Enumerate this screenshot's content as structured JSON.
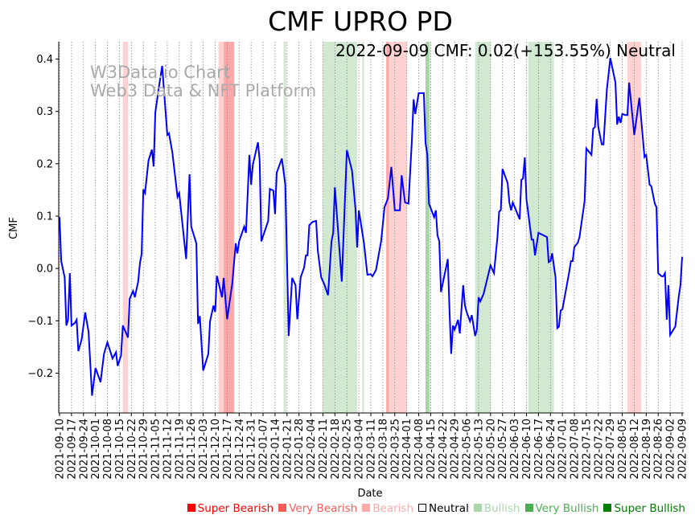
{
  "chart_data": {
    "type": "line",
    "title": "CMF UPRO PD",
    "annotation": "2022-09-09 CMF: 0.02(+153.55%) Neutral",
    "watermark": [
      "W3Data.io Chart",
      "Web3 Data & NFT Platform"
    ],
    "xlabel": "Date",
    "ylabel": "CMF",
    "start_date": "2021-09-10",
    "x_unit": "days since start_date",
    "xlim": [
      0,
      364
    ],
    "ylim": [
      -0.276,
      0.433
    ],
    "y_ticks": [
      -0.2,
      -0.1,
      0.0,
      0.1,
      0.2,
      0.3,
      0.4
    ],
    "y_tick_labels": [
      "−0.2",
      "−0.1",
      "0.0",
      "0.1",
      "0.2",
      "0.3",
      "0.4"
    ],
    "x_ticks": [
      "2021-09-10",
      "2021-09-17",
      "2021-09-24",
      "2021-10-01",
      "2021-10-08",
      "2021-10-15",
      "2021-10-22",
      "2021-10-29",
      "2021-11-05",
      "2021-11-12",
      "2021-11-19",
      "2021-11-26",
      "2021-12-03",
      "2021-12-10",
      "2021-12-17",
      "2021-12-24",
      "2021-12-31",
      "2022-01-07",
      "2022-01-14",
      "2022-01-21",
      "2022-01-28",
      "2022-02-04",
      "2022-02-11",
      "2022-02-18",
      "2022-02-25",
      "2022-03-04",
      "2022-03-11",
      "2022-03-18",
      "2022-03-25",
      "2022-04-01",
      "2022-04-08",
      "2022-04-15",
      "2022-04-22",
      "2022-04-29",
      "2022-05-06",
      "2022-05-13",
      "2022-05-20",
      "2022-05-27",
      "2022-06-03",
      "2022-06-10",
      "2022-06-17",
      "2022-06-24",
      "2022-07-01",
      "2022-07-08",
      "2022-07-15",
      "2022-07-22",
      "2022-07-29",
      "2022-08-05",
      "2022-08-12",
      "2022-08-19",
      "2022-08-26",
      "2022-09-02",
      "2022-09-09"
    ],
    "grid": "vertical dotted at weekly ticks",
    "line_color": "#0000ff",
    "series": [
      {
        "name": "CMF",
        "points": [
          [
            0,
            0.098
          ],
          [
            1,
            0.014
          ],
          [
            3,
            -0.017
          ],
          [
            4,
            -0.109
          ],
          [
            5,
            -0.098
          ],
          [
            6,
            -0.009
          ],
          [
            7,
            -0.109
          ],
          [
            9,
            -0.104
          ],
          [
            10,
            -0.098
          ],
          [
            11,
            -0.158
          ],
          [
            13,
            -0.135
          ],
          [
            15,
            -0.084
          ],
          [
            17,
            -0.121
          ],
          [
            19,
            -0.243
          ],
          [
            21,
            -0.19
          ],
          [
            24,
            -0.217
          ],
          [
            26,
            -0.163
          ],
          [
            28,
            -0.141
          ],
          [
            31,
            -0.172
          ],
          [
            33,
            -0.16
          ],
          [
            34,
            -0.186
          ],
          [
            36,
            -0.166
          ],
          [
            37,
            -0.109
          ],
          [
            40,
            -0.132
          ],
          [
            41,
            -0.058
          ],
          [
            43,
            -0.043
          ],
          [
            44,
            -0.055
          ],
          [
            46,
            -0.025
          ],
          [
            47,
            0.009
          ],
          [
            48,
            0.028
          ],
          [
            49,
            0.151
          ],
          [
            50,
            0.144
          ],
          [
            52,
            0.206
          ],
          [
            54,
            0.227
          ],
          [
            55,
            0.195
          ],
          [
            56,
            0.298
          ],
          [
            58,
            0.344
          ],
          [
            60,
            0.387
          ],
          [
            63,
            0.255
          ],
          [
            64,
            0.258
          ],
          [
            66,
            0.221
          ],
          [
            69,
            0.137
          ],
          [
            70,
            0.144
          ],
          [
            71,
            0.111
          ],
          [
            74,
            0.018
          ],
          [
            76,
            0.18
          ],
          [
            77,
            0.08
          ],
          [
            80,
            0.048
          ],
          [
            81,
            -0.106
          ],
          [
            82,
            -0.091
          ],
          [
            84,
            -0.195
          ],
          [
            87,
            -0.163
          ],
          [
            88,
            -0.101
          ],
          [
            90,
            -0.071
          ],
          [
            91,
            -0.083
          ],
          [
            92,
            -0.014
          ],
          [
            95,
            -0.055
          ],
          [
            96,
            -0.018
          ],
          [
            98,
            -0.097
          ],
          [
            101,
            -0.028
          ],
          [
            103,
            0.048
          ],
          [
            104,
            0.029
          ],
          [
            105,
            0.052
          ],
          [
            108,
            0.08
          ],
          [
            109,
            0.068
          ],
          [
            111,
            0.217
          ],
          [
            112,
            0.16
          ],
          [
            113,
            0.198
          ],
          [
            116,
            0.241
          ],
          [
            117,
            0.206
          ],
          [
            118,
            0.052
          ],
          [
            122,
            0.091
          ],
          [
            123,
            0.152
          ],
          [
            125,
            0.149
          ],
          [
            126,
            0.104
          ],
          [
            127,
            0.183
          ],
          [
            130,
            0.21
          ],
          [
            132,
            0.16
          ],
          [
            134,
            -0.129
          ],
          [
            136,
            -0.018
          ],
          [
            138,
            -0.032
          ],
          [
            139,
            -0.097
          ],
          [
            141,
            -0.017
          ],
          [
            143,
            0.002
          ],
          [
            144,
            0.025
          ],
          [
            145,
            0.025
          ],
          [
            146,
            0.083
          ],
          [
            148,
            0.089
          ],
          [
            150,
            0.091
          ],
          [
            151,
            0.034
          ],
          [
            153,
            -0.017
          ],
          [
            155,
            -0.032
          ],
          [
            157,
            -0.051
          ],
          [
            159,
            0.052
          ],
          [
            160,
            0.068
          ],
          [
            161,
            0.155
          ],
          [
            165,
            -0.025
          ],
          [
            168,
            0.226
          ],
          [
            171,
            0.187
          ],
          [
            173,
            0.114
          ],
          [
            174,
            0.04
          ],
          [
            175,
            0.111
          ],
          [
            178,
            0.048
          ],
          [
            180,
            -0.012
          ],
          [
            182,
            -0.011
          ],
          [
            183,
            -0.015
          ],
          [
            185,
            -0.003
          ],
          [
            188,
            0.052
          ],
          [
            190,
            0.117
          ],
          [
            192,
            0.134
          ],
          [
            194,
            0.194
          ],
          [
            196,
            0.111
          ],
          [
            199,
            0.111
          ],
          [
            200,
            0.178
          ],
          [
            202,
            0.126
          ],
          [
            204,
            0.124
          ],
          [
            206,
            0.244
          ],
          [
            207,
            0.323
          ],
          [
            208,
            0.295
          ],
          [
            210,
            0.335
          ],
          [
            213,
            0.335
          ],
          [
            214,
            0.24
          ],
          [
            215,
            0.218
          ],
          [
            216,
            0.124
          ],
          [
            219,
            0.098
          ],
          [
            220,
            0.111
          ],
          [
            221,
            0.063
          ],
          [
            222,
            0.052
          ],
          [
            223,
            -0.045
          ],
          [
            227,
            0.018
          ],
          [
            228,
            -0.08
          ],
          [
            229,
            -0.163
          ],
          [
            230,
            -0.109
          ],
          [
            231,
            -0.117
          ],
          [
            233,
            -0.098
          ],
          [
            234,
            -0.124
          ],
          [
            236,
            -0.032
          ],
          [
            237,
            -0.071
          ],
          [
            238,
            -0.083
          ],
          [
            240,
            -0.101
          ],
          [
            241,
            -0.089
          ],
          [
            243,
            -0.129
          ],
          [
            244,
            -0.117
          ],
          [
            245,
            -0.055
          ],
          [
            246,
            -0.063
          ],
          [
            248,
            -0.048
          ],
          [
            252,
            0.006
          ],
          [
            254,
            -0.009
          ],
          [
            256,
            0.06
          ],
          [
            257,
            0.108
          ],
          [
            258,
            0.112
          ],
          [
            259,
            0.19
          ],
          [
            262,
            0.163
          ],
          [
            263,
            0.126
          ],
          [
            264,
            0.111
          ],
          [
            265,
            0.126
          ],
          [
            269,
            0.094
          ],
          [
            270,
            0.169
          ],
          [
            271,
            0.172
          ],
          [
            272,
            0.212
          ],
          [
            273,
            0.132
          ],
          [
            276,
            0.055
          ],
          [
            277,
            0.055
          ],
          [
            278,
            0.025
          ],
          [
            280,
            0.068
          ],
          [
            285,
            0.06
          ],
          [
            286,
            0.012
          ],
          [
            287,
            0.014
          ],
          [
            288,
            0.029
          ],
          [
            290,
            -0.017
          ],
          [
            291,
            -0.114
          ],
          [
            292,
            -0.111
          ],
          [
            293,
            -0.08
          ],
          [
            294,
            -0.078
          ],
          [
            298,
            -0.006
          ],
          [
            299,
            0.014
          ],
          [
            300,
            0.014
          ],
          [
            301,
            0.041
          ],
          [
            303,
            0.049
          ],
          [
            304,
            0.06
          ],
          [
            307,
            0.129
          ],
          [
            308,
            0.229
          ],
          [
            311,
            0.217
          ],
          [
            312,
            0.267
          ],
          [
            313,
            0.27
          ],
          [
            314,
            0.324
          ],
          [
            315,
            0.27
          ],
          [
            317,
            0.237
          ],
          [
            318,
            0.237
          ],
          [
            320,
            0.341
          ],
          [
            322,
            0.402
          ],
          [
            325,
            0.355
          ],
          [
            326,
            0.275
          ],
          [
            327,
            0.29
          ],
          [
            328,
            0.278
          ],
          [
            329,
            0.295
          ],
          [
            331,
            0.293
          ],
          [
            332,
            0.293
          ],
          [
            333,
            0.355
          ],
          [
            336,
            0.255
          ],
          [
            339,
            0.326
          ],
          [
            342,
            0.213
          ],
          [
            343,
            0.217
          ],
          [
            345,
            0.16
          ],
          [
            346,
            0.157
          ],
          [
            348,
            0.124
          ],
          [
            349,
            0.117
          ],
          [
            350,
            -0.009
          ],
          [
            352,
            -0.015
          ],
          [
            353,
            -0.015
          ],
          [
            354,
            -0.009
          ],
          [
            355,
            -0.098
          ],
          [
            356,
            -0.032
          ],
          [
            357,
            -0.127
          ],
          [
            360,
            -0.111
          ],
          [
            362,
            -0.055
          ],
          [
            363,
            -0.032
          ],
          [
            364,
            0.022
          ]
        ]
      }
    ],
    "regions": [
      {
        "start": 37,
        "end": 40,
        "state": "Bearish"
      },
      {
        "start": 93,
        "end": 96,
        "state": "Bearish"
      },
      {
        "start": 96,
        "end": 99,
        "state": "Very Bearish"
      },
      {
        "start": 99,
        "end": 102,
        "state": "Very Bearish"
      },
      {
        "start": 131,
        "end": 132.5,
        "state": "Bullish"
      },
      {
        "start": 154,
        "end": 174,
        "state": "Bullish"
      },
      {
        "start": 177,
        "end": 178,
        "state": "Bullish"
      },
      {
        "start": 191,
        "end": 192.5,
        "state": "Very Bearish"
      },
      {
        "start": 192.5,
        "end": 203,
        "state": "Bearish"
      },
      {
        "start": 214,
        "end": 216,
        "state": "Very Bullish"
      },
      {
        "start": 216,
        "end": 217,
        "state": "Bullish"
      },
      {
        "start": 243,
        "end": 252,
        "state": "Bullish"
      },
      {
        "start": 274,
        "end": 289,
        "state": "Bullish"
      },
      {
        "start": 332,
        "end": 340,
        "state": "Bearish"
      }
    ],
    "region_colors": {
      "Bearish": "rgba(255,0,0,0.18)",
      "Very Bearish": "rgba(255,0,0,0.35)",
      "Bullish": "rgba(0,128,0,0.18)",
      "Very Bullish": "rgba(0,128,0,0.35)"
    },
    "legend": [
      {
        "label": "Super Bearish",
        "color": "#ff0000"
      },
      {
        "label": "Very Bearish",
        "color": "#ff5a5a"
      },
      {
        "label": "Bearish",
        "color": "#ffaaaa"
      },
      {
        "label": "Neutral",
        "color": "#000000",
        "outline": true
      },
      {
        "label": "Bullish",
        "color": "#a8d8a8"
      },
      {
        "label": "Very Bullish",
        "color": "#4caf50"
      },
      {
        "label": "Super Bullish",
        "color": "#008000"
      }
    ],
    "legend_placement": "bottom-right"
  }
}
